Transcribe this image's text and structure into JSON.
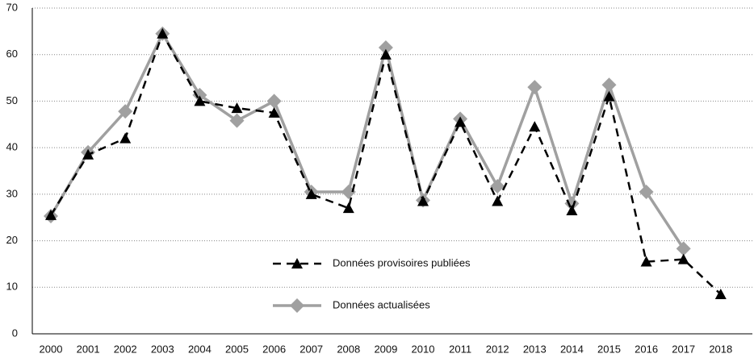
{
  "chart_data": {
    "type": "line",
    "categories": [
      "2000",
      "2001",
      "2002",
      "2003",
      "2004",
      "2005",
      "2006",
      "2007",
      "2008",
      "2009",
      "2010",
      "2011",
      "2012",
      "2013",
      "2014",
      "2015",
      "2016",
      "2017",
      "2018"
    ],
    "series": [
      {
        "name": "Données provisoires publiées",
        "color": "#000000",
        "marker": "triangle",
        "dash": true,
        "values": [
          25.5,
          38.5,
          42,
          64.5,
          50,
          48.5,
          47.5,
          30,
          27,
          60,
          28.5,
          45.5,
          28.5,
          44.5,
          26.5,
          51,
          15.5,
          16,
          8.5
        ]
      },
      {
        "name": "Données actualisées",
        "color": "#a0a0a0",
        "marker": "diamond",
        "dash": false,
        "values": [
          25.3,
          39,
          47.8,
          64.5,
          51.3,
          45.8,
          50,
          30.5,
          30.5,
          61.5,
          28.7,
          46.2,
          31.7,
          53,
          28,
          53.5,
          30.5,
          18.3,
          null
        ]
      }
    ],
    "ylim": [
      0,
      70
    ],
    "yticks": [
      0,
      10,
      20,
      30,
      40,
      50,
      60,
      70
    ],
    "grid": true
  }
}
